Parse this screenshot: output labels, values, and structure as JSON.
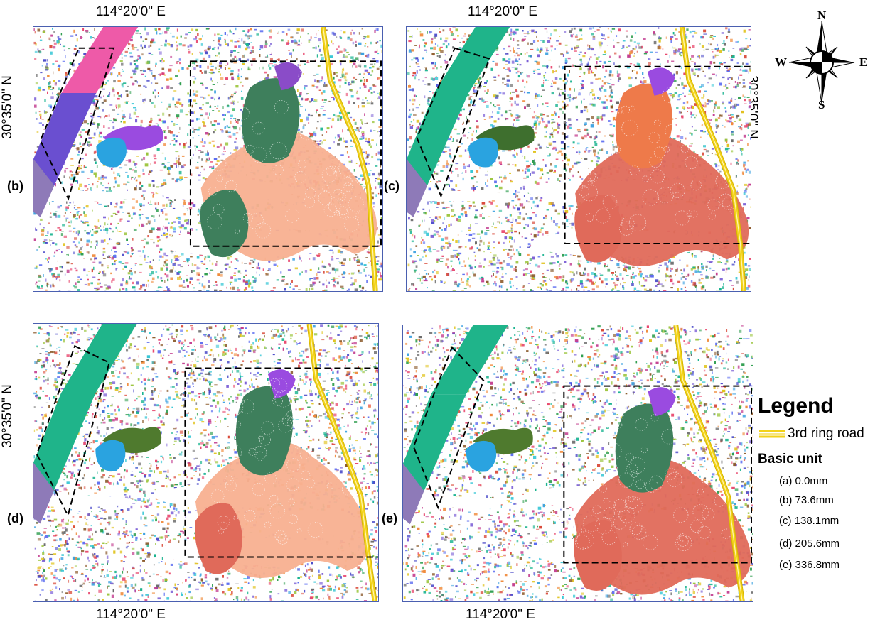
{
  "coordinates": {
    "longitude_label": "114°20'0\" E",
    "latitude_label": "30°35'0\" N"
  },
  "panels": [
    {
      "id": "b",
      "letter": "(b)"
    },
    {
      "id": "c",
      "letter": "(c)"
    },
    {
      "id": "d",
      "letter": "(d)"
    },
    {
      "id": "e",
      "letter": "(e)"
    }
  ],
  "compass": {
    "north": "N",
    "south": "S",
    "east": "E",
    "west": "W"
  },
  "legend": {
    "title": "Legend",
    "road_label": "3rd ring road",
    "basic_unit_label": "Basic unit",
    "items": [
      "(a) 0.0mm",
      "(b) 73.6mm",
      "(c) 138.1mm",
      "(d) 205.6mm",
      "(e) 336.8mm"
    ]
  },
  "colors": {
    "road": "#f2d21a",
    "panel_border": "#4a5fb0",
    "scatter_palette": [
      "#e8456c",
      "#3aa0e0",
      "#2f9e4f",
      "#7b5fd6",
      "#f08a3a",
      "#19b38f",
      "#c23b8e",
      "#5b6cf0",
      "#9ac43a",
      "#e0c21a",
      "#4b4bc9",
      "#d94a3a",
      "#38c7d6",
      "#8b5a2b",
      "#6a6a6a"
    ],
    "panel_regions": {
      "b": {
        "diagonal_band": [
          "#ee5aa8",
          "#6a4fd0"
        ],
        "west_blob": "#9a4be0",
        "blue_blob": "#2aa3e0",
        "north_core": "#3e7f5c",
        "south_core": "#3e7f5c",
        "surround": "#f8b090",
        "east_top": "#8a4cc8"
      },
      "c": {
        "diagonal_band": [
          "#1fb48a",
          "#1fb48a"
        ],
        "west_blob": "#3e6f2e",
        "blue_blob": "#2aa3e0",
        "north_core": "#ee7a4a",
        "south_core": "#e06a5a",
        "surround": "#e06a5a",
        "east_top": "#9a4be0"
      },
      "d": {
        "diagonal_band": [
          "#1fb48a",
          "#1fb48a"
        ],
        "west_blob": "#4f7a2e",
        "blue_blob": "#2aa3e0",
        "north_core": "#3e7f5c",
        "south_core": "#e06a5a",
        "surround": "#f8b090",
        "east_top": "#9a4be0"
      },
      "e": {
        "diagonal_band": [
          "#1fb48a",
          "#1fb48a"
        ],
        "west_blob": "#4f7a2e",
        "blue_blob": "#2aa3e0",
        "north_core": "#3e7f5c",
        "south_core": "#e06a5a",
        "surround": "#e06a5a",
        "east_top": "#9a4be0"
      }
    }
  }
}
